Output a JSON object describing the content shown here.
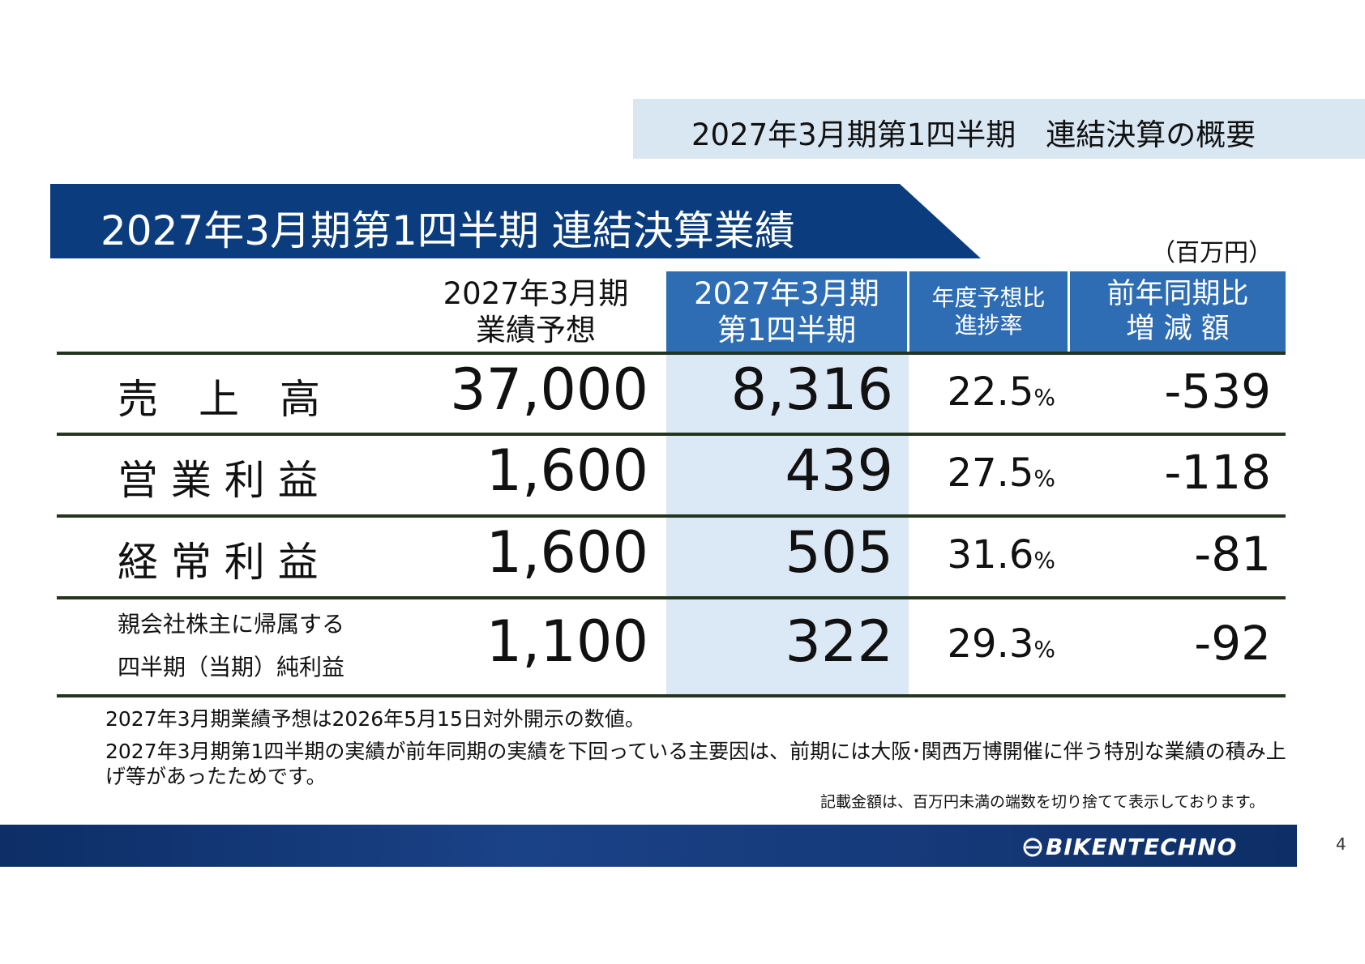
{
  "header": {
    "top_title": "2027年3月期第1四半期　連結決算の概要",
    "section_title": "2027年3月期第1四半期 連結決算業績",
    "unit": "（百万円）"
  },
  "table": {
    "columns": {
      "forecast_line1": "2027年3月期",
      "forecast_line2": "業績予想",
      "q1_line1": "2027年3月期",
      "q1_line2": "第1四半期",
      "progress_line1": "年度予想比",
      "progress_line2": "進捗率",
      "yoy_line1": "前年同期比",
      "yoy_line2": "増 減 額"
    },
    "rows": [
      {
        "label": "売　上　高",
        "forecast": "37,000",
        "q1": "8,316",
        "progress": "22.5",
        "progress_unit": "%",
        "yoy": "-539"
      },
      {
        "label": "営 業 利 益",
        "forecast": "1,600",
        "q1": "439",
        "progress": "27.5",
        "progress_unit": "%",
        "yoy": "-118"
      },
      {
        "label": "経 常 利 益",
        "forecast": "1,600",
        "q1": "505",
        "progress": "31.6",
        "progress_unit": "%",
        "yoy": "-81"
      },
      {
        "label_line1": "親会社株主に帰属する",
        "label_line2": "四半期（当期）純利益",
        "forecast": "1,100",
        "q1": "322",
        "progress": "29.3",
        "progress_unit": "%",
        "yoy": "-92"
      }
    ]
  },
  "notes": {
    "note1": "2027年3月期業績予想は2026年5月15日対外開示の数値。",
    "note2_line1": "2027年3月期第1四半期の実績が前年同期の実績を下回っている主要因は、前期には大阪･関西万博開催に伴う特別な業績の積み上",
    "note2_line2": "げ等があったためです。",
    "footnote": "記載金額は、百万円未満の端数を切り捨てて表示しております。"
  },
  "footer": {
    "logo_text": "BIKENTECHNO",
    "page_number": "4"
  },
  "colors": {
    "navy": "#0b3d7e",
    "header_blue": "#2e6db4",
    "light_blue": "#dbe8f5",
    "banner_blue": "#d9e7f3"
  }
}
